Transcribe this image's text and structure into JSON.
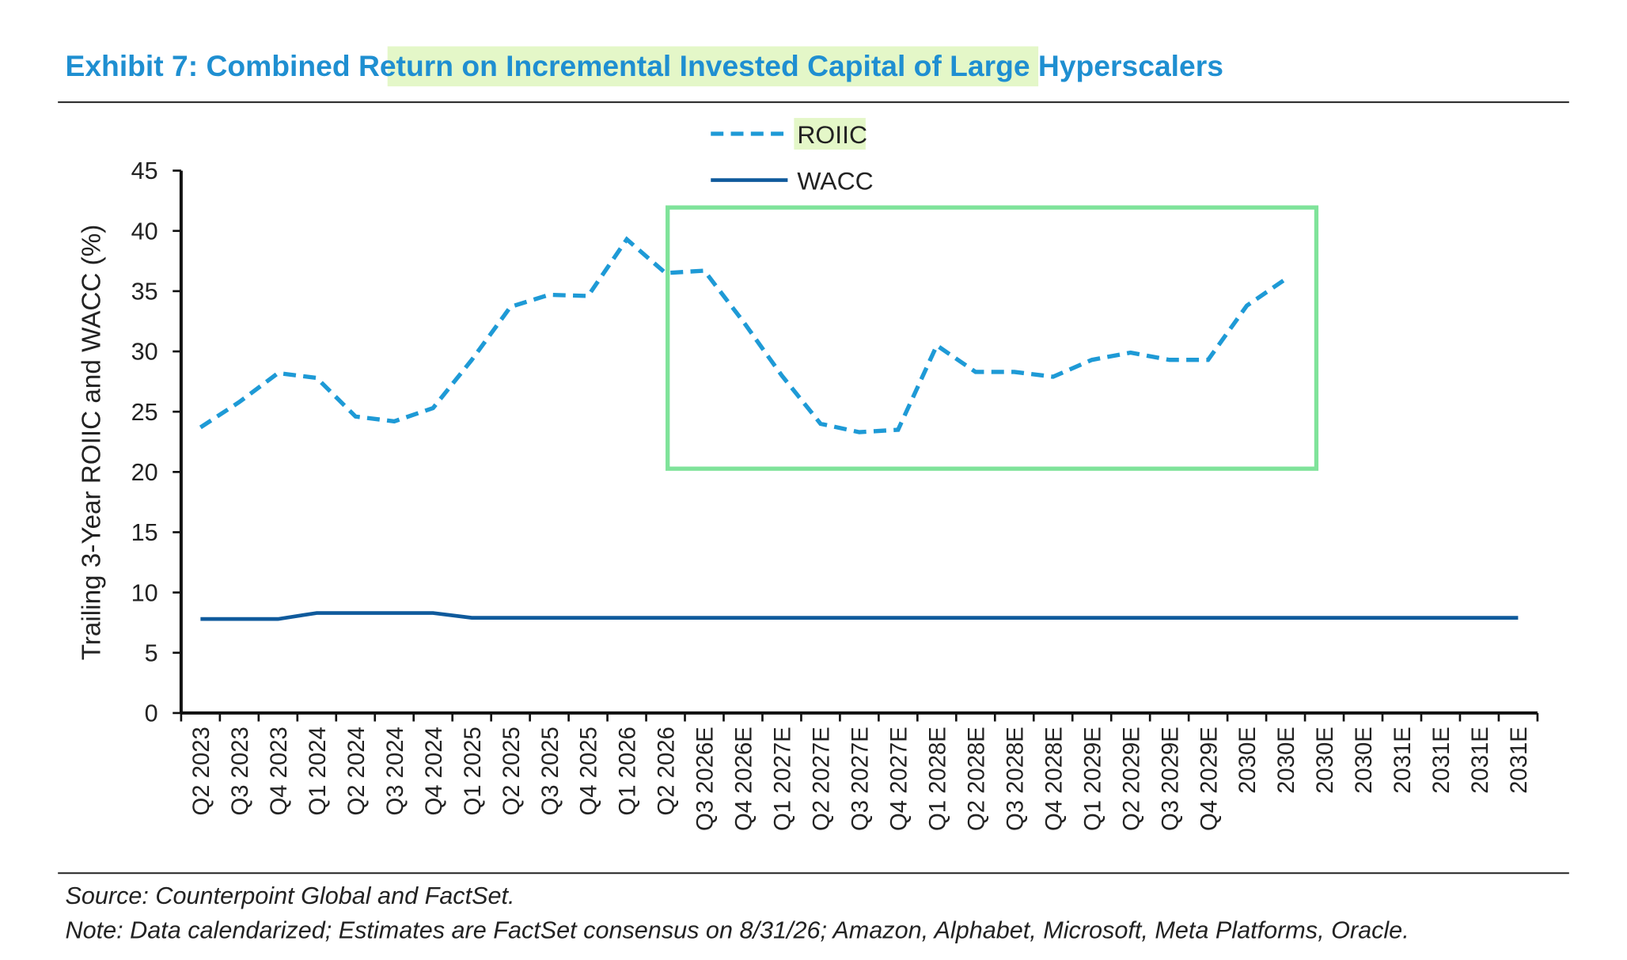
{
  "chart_data": {
    "type": "line",
    "title": "Exhibit 7: Combined Return on Incremental Invested Capital of Large Hyperscalers",
    "y_label": "Trailing 3-Year ROIIC and WACC (%)",
    "source": "Source: Counterpoint Global and FactSet.",
    "note": "Note: Data calendarized; Estimates are FactSet consensus on 8/31/26; Amazon, Alphabet, Microsoft, Meta Platforms, Oracle.",
    "categories": [
      "Q2 2023",
      "Q3 2023",
      "Q4 2023",
      "Q1 2024",
      "Q2 2024",
      "Q3 2024",
      "Q4 2024",
      "Q1 2025",
      "Q2 2025",
      "Q3 2025",
      "Q4 2025",
      "Q1 2026",
      "Q2 2026",
      "Q3 2026E",
      "Q4 2026E",
      "Q1 2027E",
      "Q2 2027E",
      "Q3 2027E",
      "Q4 2027E",
      "Q1 2028E",
      "Q2 2028E",
      "Q3 2028E",
      "Q4 2028E",
      "Q1 2029E",
      "Q2 2029E",
      "Q3 2029E",
      "Q4 2029E",
      "2030E",
      "2030E",
      "2030E",
      "2030E",
      "2031E",
      "2031E",
      "2031E",
      "2031E"
    ],
    "series": [
      {
        "name": "ROIIC",
        "color": "#1e9ad6",
        "dashed": true,
        "values": [
          23.7,
          25.8,
          28.2,
          27.8,
          24.6,
          24.2,
          25.3,
          29.3,
          33.7,
          34.7,
          34.6,
          39.3,
          36.5,
          36.7,
          32.5,
          28.0,
          24.0,
          23.3,
          23.5,
          30.5,
          28.3,
          28.3,
          27.9,
          29.3,
          29.9,
          29.3,
          29.3,
          33.8,
          36.0,
          null,
          null,
          null,
          null,
          null,
          null
        ]
      },
      {
        "name": "WACC",
        "color": "#0f5a9c",
        "dashed": false,
        "values": [
          7.8,
          7.8,
          7.8,
          8.3,
          8.3,
          8.3,
          8.3,
          7.9,
          7.9,
          7.9,
          7.9,
          7.9,
          7.9,
          7.9,
          7.9,
          7.9,
          7.9,
          7.9,
          7.9,
          7.9,
          7.9,
          7.9,
          7.9,
          7.9,
          7.9,
          7.9,
          7.9,
          7.9,
          7.9,
          7.9,
          7.9,
          7.9,
          7.9,
          7.9,
          7.9
        ]
      }
    ],
    "ylim": [
      0,
      45
    ],
    "yticks": [
      0,
      5,
      10,
      15,
      20,
      25,
      30,
      35,
      40,
      45
    ]
  }
}
